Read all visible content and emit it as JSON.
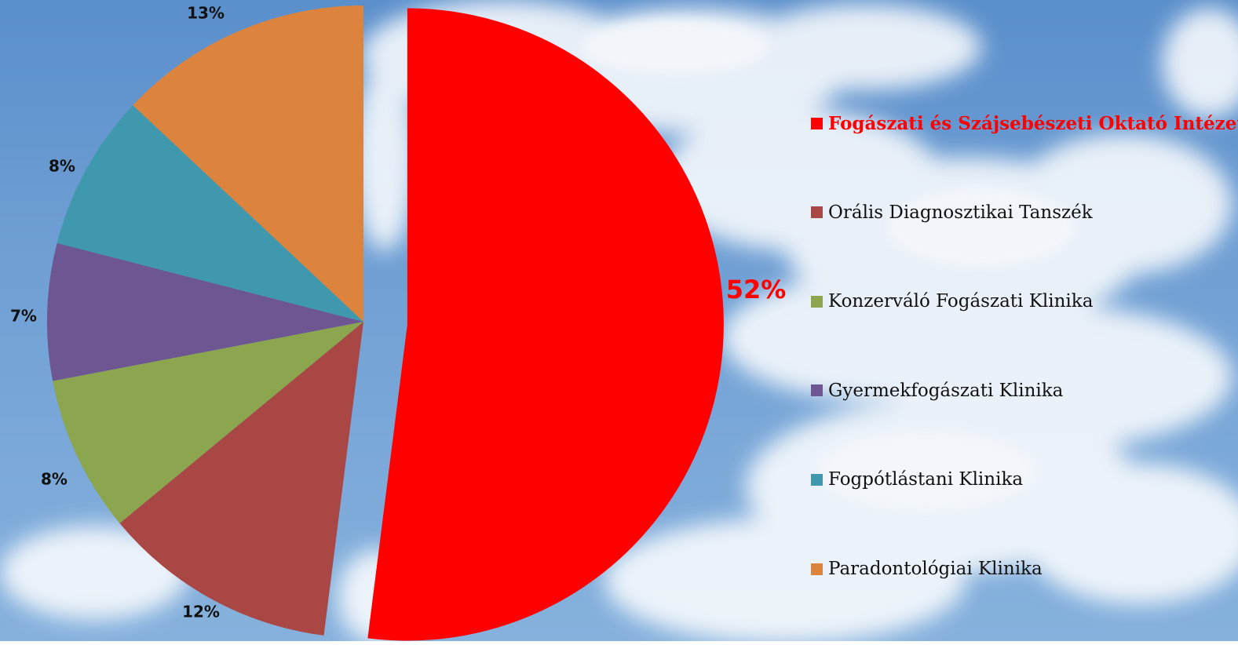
{
  "chart_data": {
    "type": "pie",
    "title": "",
    "slices": [
      {
        "name": "Fogászati és Szájsebészeti Oktató Intézet",
        "value": 52,
        "label": "52%",
        "color": "#ff0000",
        "exploded": true
      },
      {
        "name": "Orális Diagnosztikai Tanszék",
        "value": 12,
        "label": "12%",
        "color": "#a84743"
      },
      {
        "name": "Konzerváló Fogászati Klinika",
        "value": 8,
        "label": "8%",
        "color": "#8ba64e"
      },
      {
        "name": "Gyermekfogászati Klinika",
        "value": 7,
        "label": "7%",
        "color": "#6d5691"
      },
      {
        "name": "Fogpótlástani Klinika",
        "value": 8,
        "label": "8%",
        "color": "#3f98ae"
      },
      {
        "name": "Paradontológiai Klinika",
        "value": 13,
        "label": "13%",
        "color": "#dc843d"
      }
    ],
    "legend_position": "right",
    "highlight_slice": "Fogászati és Szájsebészeti Oktató Intézet"
  }
}
